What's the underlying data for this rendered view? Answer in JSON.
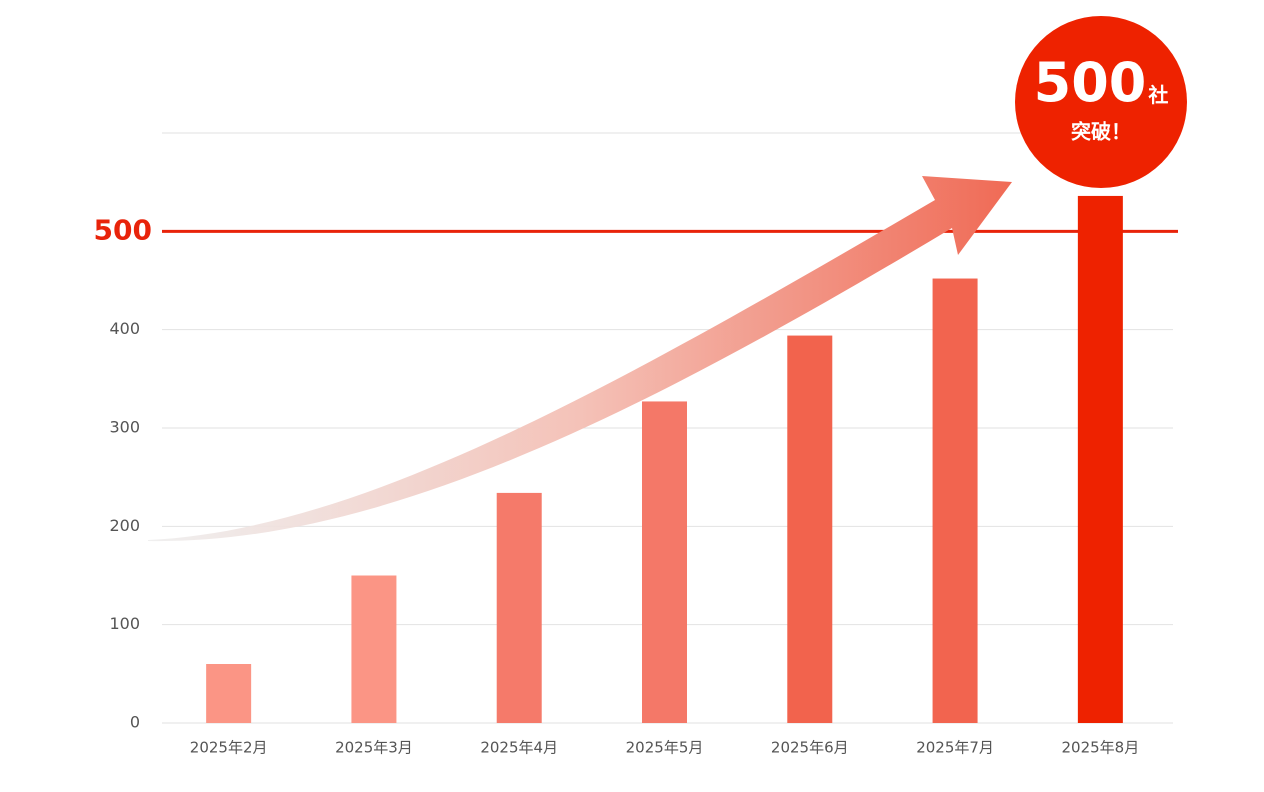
{
  "chart_data": {
    "type": "bar",
    "categories": [
      "2025年2月",
      "2025年3月",
      "2025年4月",
      "2025年5月",
      "2025年6月",
      "2025年7月",
      "2025年8月"
    ],
    "values": [
      60,
      150,
      234,
      327,
      394,
      452,
      536
    ],
    "colors": [
      "#fb9585",
      "#fb9585",
      "#f57a6a",
      "#f47868",
      "#f2634d",
      "#f2644f",
      "#ee2200"
    ],
    "ylim": [
      0,
      600
    ],
    "yticks": [
      0,
      100,
      200,
      300,
      400
    ],
    "grid": true,
    "reference_line": {
      "value": 500,
      "color": "#e8230a"
    },
    "badge": {
      "number": "500",
      "unit": "社",
      "text": "突破！",
      "color": "#ee2200"
    }
  }
}
